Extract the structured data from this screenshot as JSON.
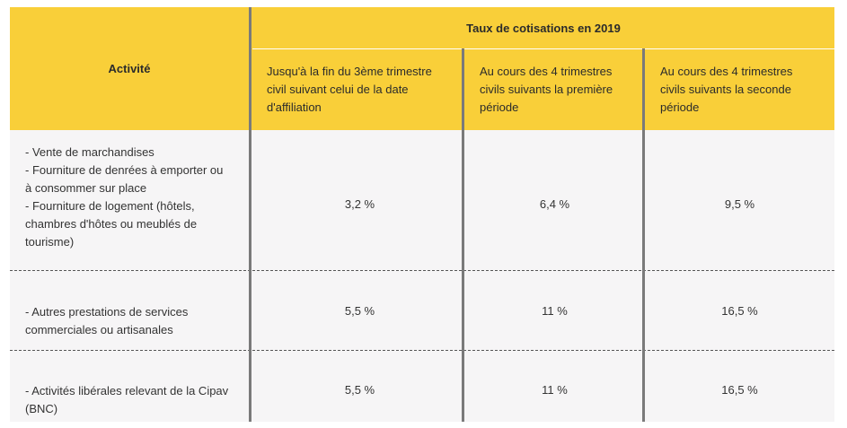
{
  "table": {
    "header": {
      "activite": "Activité",
      "taux": "Taux de cotisations en 2019",
      "col1": [
        "Jusqu'à la fin du 3ème trimestre",
        "civil suivant celui de la date",
        "d'affiliation"
      ],
      "col2": [
        "Au cours des 4 trimestres",
        "civils suivants la première",
        "période"
      ],
      "col3": [
        "Au cours des 4 trimestres",
        "civils suivants la seconde",
        "période"
      ]
    },
    "rows": [
      {
        "activite": [
          "- Vente de marchandises",
          "- Fourniture de denrées à emporter ou",
          "à consommer sur place",
          "- Fourniture de logement (hôtels,",
          "chambres d'hôtes ou meublés de",
          "tourisme)"
        ],
        "values": [
          "3,2 %",
          "6,4 %",
          "9,5 %"
        ]
      },
      {
        "activite": [
          "- Autres prestations de services",
          "commerciales ou artisanales"
        ],
        "values": [
          "5,5 %",
          "11 %",
          "16,5 %"
        ]
      },
      {
        "activite": [
          "- Activités libérales relevant de la Cipav",
          "(BNC)"
        ],
        "values": [
          "5,5 %",
          "11 %",
          "16,5 %"
        ]
      }
    ]
  },
  "colors": {
    "header_bg": "#f9cf39",
    "body_bg": "#f6f5f6",
    "separator": "#7a7a7a"
  }
}
